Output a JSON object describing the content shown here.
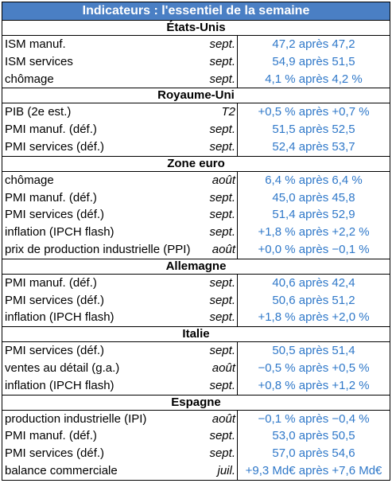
{
  "title": "Indicateurs : l'essentiel de la semaine",
  "sections": [
    {
      "name": "États-Unis",
      "rows": [
        {
          "label": "ISM manuf.",
          "period": "sept.",
          "value": "47,2 après 47,2"
        },
        {
          "label": "ISM services",
          "period": "sept.",
          "value": "54,9 après 51,5"
        },
        {
          "label": "chômage",
          "period": "sept.",
          "value": "4,1 % après 4,2 %"
        }
      ]
    },
    {
      "name": "Royaume-Uni",
      "rows": [
        {
          "label": "PIB (2e est.)",
          "period": "T2",
          "value": "+0,5 % après +0,7 %"
        },
        {
          "label": "PMI manuf. (déf.)",
          "period": "sept.",
          "value": "51,5 après 52,5"
        },
        {
          "label": "PMI services (déf.)",
          "period": "sept.",
          "value": "52,4 après 53,7"
        }
      ]
    },
    {
      "name": "Zone euro",
      "rows": [
        {
          "label": "chômage",
          "period": "août",
          "value": "6,4 % après 6,4 %"
        },
        {
          "label": "PMI manuf. (déf.)",
          "period": "sept.",
          "value": "45,0 après 45,8"
        },
        {
          "label": "PMI services (déf.)",
          "period": "sept.",
          "value": "51,4 après 52,9"
        },
        {
          "label": "inflation (IPCH flash)",
          "period": "sept.",
          "value": "+1,8 % après +2,2 %"
        },
        {
          "label": "prix de production industrielle (PPI)",
          "period": "août",
          "value": "+0,0 % après −0,1 %"
        }
      ]
    },
    {
      "name": "Allemagne",
      "rows": [
        {
          "label": "PMI manuf. (déf.)",
          "period": "sept.",
          "value": "40,6 après 42,4"
        },
        {
          "label": "PMI services (déf.)",
          "period": "sept.",
          "value": "50,6 après 51,2"
        },
        {
          "label": "inflation (IPCH flash)",
          "period": "sept.",
          "value": "+1,8 % après +2,0 %"
        }
      ]
    },
    {
      "name": "Italie",
      "rows": [
        {
          "label": "PMI services (déf.)",
          "period": "sept.",
          "value": "50,5 après 51,4"
        },
        {
          "label": "ventes au détail (g.a.)",
          "period": "août",
          "value": "−0,5 % après +0,5 %"
        },
        {
          "label": "inflation (IPCH flash)",
          "period": "sept.",
          "value": "+0,8 % après +1,2 %"
        }
      ]
    },
    {
      "name": "Espagne",
      "rows": [
        {
          "label": "production industrielle (IPI)",
          "period": "août",
          "value": "−0,1 % après −0,4 %"
        },
        {
          "label": "PMI manuf. (déf.)",
          "period": "sept.",
          "value": "53,0 après 50,5"
        },
        {
          "label": "PMI services (déf.)",
          "period": "sept.",
          "value": "57,0 après 54,6"
        },
        {
          "label": "balance commerciale",
          "period": "juil.",
          "value": "+9,3 Md€ après +7,6 Md€"
        }
      ]
    }
  ]
}
